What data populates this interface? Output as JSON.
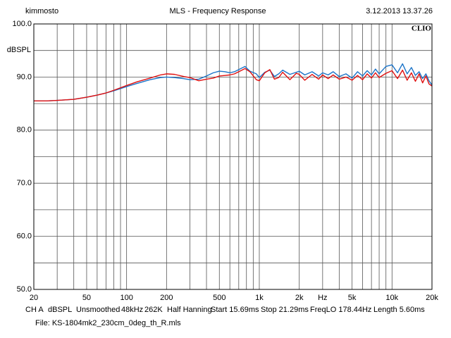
{
  "chart_data": {
    "type": "line",
    "title": "MLS - Frequency Response",
    "author": "kimmosto",
    "timestamp": "3.12.2013 13.37.26",
    "brand": "CLIO",
    "y_label": "dBSPL",
    "log_x": true,
    "grid": true,
    "xlim": [
      20,
      20000
    ],
    "xticks": [
      20,
      50,
      100,
      200,
      500,
      {
        "value": 1000,
        "label": "1k"
      },
      {
        "value": 2000,
        "label": "2k"
      },
      {
        "value": 3000,
        "label": "Hz"
      },
      {
        "value": 5000,
        "label": "5k"
      },
      {
        "value": 10000,
        "label": "10k"
      },
      {
        "value": 20000,
        "label": "20k"
      }
    ],
    "xminor": [
      30,
      40,
      60,
      70,
      80,
      90,
      300,
      400,
      600,
      700,
      800,
      900,
      4000,
      6000,
      7000,
      8000,
      9000
    ],
    "ylim": [
      50,
      100
    ],
    "yticks": [
      {
        "value": 50,
        "label": "50.0"
      },
      {
        "value": 60,
        "label": "60.0"
      },
      {
        "value": 70,
        "label": "70.0"
      },
      {
        "value": 80,
        "label": "80.0"
      },
      {
        "value": 90,
        "label": "90.0"
      },
      {
        "value": 100,
        "label": "100.0"
      }
    ],
    "yminor": [
      55,
      65,
      75,
      85,
      95
    ],
    "x": [
      20,
      25,
      30,
      40,
      50,
      60,
      70,
      80,
      100,
      120,
      150,
      180,
      200,
      230,
      270,
      300,
      350,
      400,
      450,
      500,
      550,
      600,
      650,
      700,
      780,
      850,
      950,
      1000,
      1100,
      1200,
      1300,
      1400,
      1500,
      1700,
      1900,
      2000,
      2200,
      2500,
      2800,
      3000,
      3300,
      3600,
      4000,
      4500,
      5000,
      5500,
      6000,
      6500,
      7000,
      7500,
      8000,
      9000,
      10000,
      11000,
      12000,
      13000,
      14000,
      15000,
      16000,
      17000,
      18000,
      19000,
      20000
    ],
    "series": [
      {
        "color": "#1c74c8",
        "values": [
          85.5,
          85.5,
          85.6,
          85.8,
          86.2,
          86.6,
          87.0,
          87.4,
          88.2,
          88.8,
          89.5,
          89.9,
          90.0,
          89.9,
          89.7,
          89.5,
          89.6,
          90.2,
          90.8,
          91.1,
          91.0,
          90.8,
          91.0,
          91.4,
          92.0,
          91.1,
          90.6,
          89.9,
          90.9,
          91.3,
          90.1,
          90.6,
          91.3,
          90.5,
          90.9,
          91.1,
          90.4,
          91.0,
          90.2,
          90.8,
          90.4,
          91.0,
          90.1,
          90.6,
          89.8,
          91.0,
          90.2,
          91.2,
          90.4,
          91.5,
          90.6,
          92.0,
          92.3,
          90.8,
          92.5,
          90.6,
          91.8,
          90.3,
          91.0,
          89.7,
          90.6,
          89.3,
          88.5
        ]
      },
      {
        "color": "#e01010",
        "values": [
          85.5,
          85.5,
          85.6,
          85.8,
          86.2,
          86.6,
          87.0,
          87.5,
          88.4,
          89.1,
          89.8,
          90.4,
          90.6,
          90.5,
          90.1,
          89.9,
          89.3,
          89.6,
          89.8,
          90.2,
          90.3,
          90.4,
          90.6,
          91.0,
          91.6,
          91.0,
          89.5,
          89.3,
          90.8,
          91.4,
          89.6,
          89.9,
          90.9,
          89.5,
          90.7,
          90.5,
          89.4,
          90.5,
          89.6,
          90.4,
          89.7,
          90.4,
          89.6,
          90.0,
          89.4,
          90.3,
          89.5,
          90.6,
          89.8,
          90.8,
          89.9,
          90.7,
          91.2,
          89.7,
          91.3,
          89.4,
          90.8,
          89.2,
          90.6,
          88.9,
          90.2,
          88.7,
          88.3
        ]
      }
    ],
    "settings_line": [
      "CH A",
      "dBSPL",
      "Unsmoothed",
      "48kHz",
      "262K",
      "Half Hanning",
      "Start 15.69ms",
      "Stop 21.29ms",
      "FreqLO 178.44Hz",
      "Length 5.60ms"
    ],
    "file_line": "File: KS-1804mk2_230cm_0deg_th_R.mls"
  }
}
